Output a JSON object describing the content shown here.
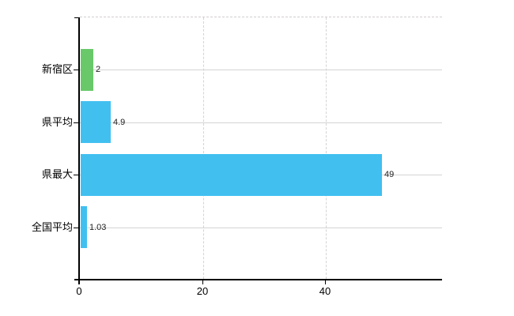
{
  "chart_data": {
    "type": "bar",
    "orientation": "horizontal",
    "title": "",
    "xlabel": "",
    "ylabel": "",
    "categories": [
      "新宿区",
      "県平均",
      "県最大",
      "全国平均"
    ],
    "values": [
      2,
      4.9,
      49,
      1.03
    ],
    "value_labels": [
      "2",
      "4.9",
      "49",
      "1.03"
    ],
    "bar_colors": [
      "#69c869",
      "#41c0f0",
      "#41c0f0",
      "#41c0f0"
    ],
    "x_ticks": [
      0,
      20,
      40
    ],
    "x_tick_labels": [
      "0",
      "20",
      "40"
    ],
    "xlim": [
      0,
      58.9
    ],
    "grid": true,
    "legend": "none"
  },
  "colors": {
    "background": "#ffffff",
    "axis": "#000000",
    "h_gridline": "#d4d4d4",
    "v_gridline": "#d8d2d3",
    "top_border": "#d3cdce",
    "category_text": "#000000",
    "value_text": "#222222",
    "tick_text": "#000000"
  }
}
